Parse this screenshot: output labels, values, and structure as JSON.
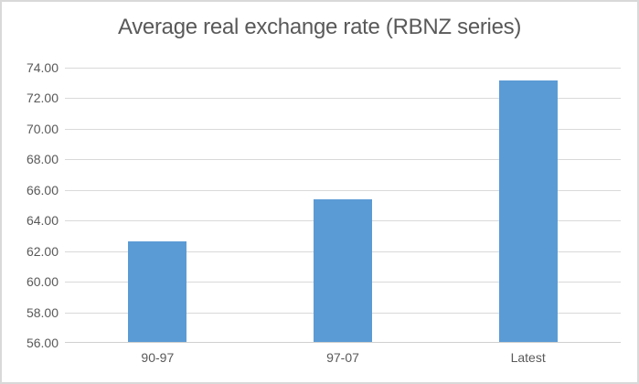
{
  "chart_data": {
    "type": "bar",
    "title": "Average real exchange rate (RBNZ series)",
    "categories": [
      "90-97",
      "97-07",
      "Latest"
    ],
    "values": [
      62.6,
      65.3,
      73.1
    ],
    "y_tick_labels": [
      "74.00",
      "72.00",
      "70.00",
      "68.00",
      "66.00",
      "64.00",
      "62.00",
      "60.00",
      "58.00",
      "56.00"
    ],
    "ylim": [
      56,
      74
    ],
    "y_tick_step": 2,
    "xlabel": "",
    "ylabel": "",
    "legend_position": "none",
    "grid": true,
    "colors": {
      "bar": "#5b9bd5",
      "gridline": "#d9d9d9",
      "axis_line": "#d0d0d0",
      "text": "#595959",
      "background": "#ffffff",
      "border": "#d9d9d9"
    }
  }
}
